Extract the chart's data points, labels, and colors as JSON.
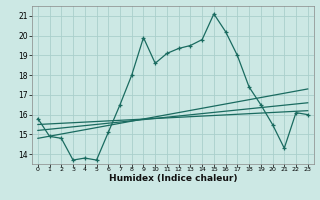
{
  "title": "",
  "xlabel": "Humidex (Indice chaleur)",
  "ylabel": "",
  "bg_color": "#cce8e4",
  "grid_color": "#aacfcc",
  "line_color": "#1a6b60",
  "xlim": [
    -0.5,
    23.5
  ],
  "ylim": [
    13.5,
    21.5
  ],
  "yticks": [
    14,
    15,
    16,
    17,
    18,
    19,
    20,
    21
  ],
  "xticks": [
    0,
    1,
    2,
    3,
    4,
    5,
    6,
    7,
    8,
    9,
    10,
    11,
    12,
    13,
    14,
    15,
    16,
    17,
    18,
    19,
    20,
    21,
    22,
    23
  ],
  "main_x": [
    0,
    1,
    2,
    3,
    4,
    5,
    6,
    7,
    8,
    9,
    10,
    11,
    12,
    13,
    14,
    15,
    16,
    17,
    18,
    19,
    20,
    21,
    22,
    23
  ],
  "main_y": [
    15.8,
    14.9,
    14.8,
    13.7,
    13.8,
    13.7,
    15.1,
    16.5,
    18.0,
    19.9,
    18.6,
    19.1,
    19.35,
    19.5,
    19.8,
    21.1,
    20.2,
    19.0,
    17.4,
    16.5,
    15.5,
    14.3,
    16.1,
    16.0
  ],
  "line1_x": [
    0,
    23
  ],
  "line1_y": [
    14.8,
    17.3
  ],
  "line2_x": [
    0,
    23
  ],
  "line2_y": [
    15.2,
    16.6
  ],
  "line3_x": [
    0,
    23
  ],
  "line3_y": [
    15.5,
    16.2
  ]
}
